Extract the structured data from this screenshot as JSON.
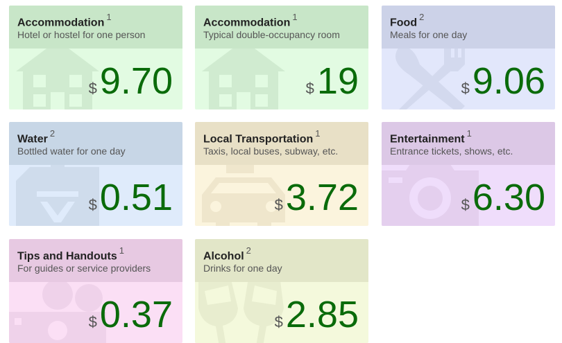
{
  "cards": [
    {
      "title": "Accommodation",
      "note": "1",
      "subtitle": "Hotel or hostel for one person",
      "currency": "$",
      "amount": "9.70",
      "icon": "house-icon",
      "head_color": "#c8e6c8",
      "body_color": "#e2fbe2",
      "icon_color": "#d0ebd0"
    },
    {
      "title": "Accommodation",
      "note": "1",
      "subtitle": "Typical double-occupancy room",
      "currency": "$",
      "amount": "19",
      "icon": "house-icon",
      "head_color": "#c8e6c8",
      "body_color": "#e2fbe2",
      "icon_color": "#d0ebd0"
    },
    {
      "title": "Food",
      "note": "2",
      "subtitle": "Meals for one day",
      "currency": "$",
      "amount": "9.06",
      "icon": "utensils-icon",
      "head_color": "#ccd2e8",
      "body_color": "#e2e7fb",
      "icon_color": "#d3d9ee"
    },
    {
      "title": "Water",
      "note": "2",
      "subtitle": "Bottled water for one day",
      "currency": "$",
      "amount": "0.51",
      "icon": "water-jug-icon",
      "head_color": "#c7d6e6",
      "body_color": "#dfebfb",
      "icon_color": "#cfdcec"
    },
    {
      "title": "Local Transportation",
      "note": "1",
      "subtitle": "Taxis, local buses, subway, etc.",
      "currency": "$",
      "amount": "3.72",
      "icon": "taxi-icon",
      "head_color": "#e8e0c6",
      "body_color": "#fbf4dd",
      "icon_color": "#efe6cc"
    },
    {
      "title": "Entertainment",
      "note": "1",
      "subtitle": "Entrance tickets, shows, etc.",
      "currency": "$",
      "amount": "6.30",
      "icon": "camera-icon",
      "head_color": "#dcc8e6",
      "body_color": "#efddfb",
      "icon_color": "#e4cfee"
    },
    {
      "title": "Tips and Handouts",
      "note": "1",
      "subtitle": "For guides or service providers",
      "currency": "$",
      "amount": "0.37",
      "icon": "money-icon",
      "head_color": "#e7c9e2",
      "body_color": "#fbdff5",
      "icon_color": "#efd2ea"
    },
    {
      "title": "Alcohol",
      "note": "2",
      "subtitle": "Drinks for one day",
      "currency": "$",
      "amount": "2.85",
      "icon": "glasses-icon",
      "head_color": "#e2e6c8",
      "body_color": "#f4f9dc",
      "icon_color": "#e8edcf"
    }
  ]
}
